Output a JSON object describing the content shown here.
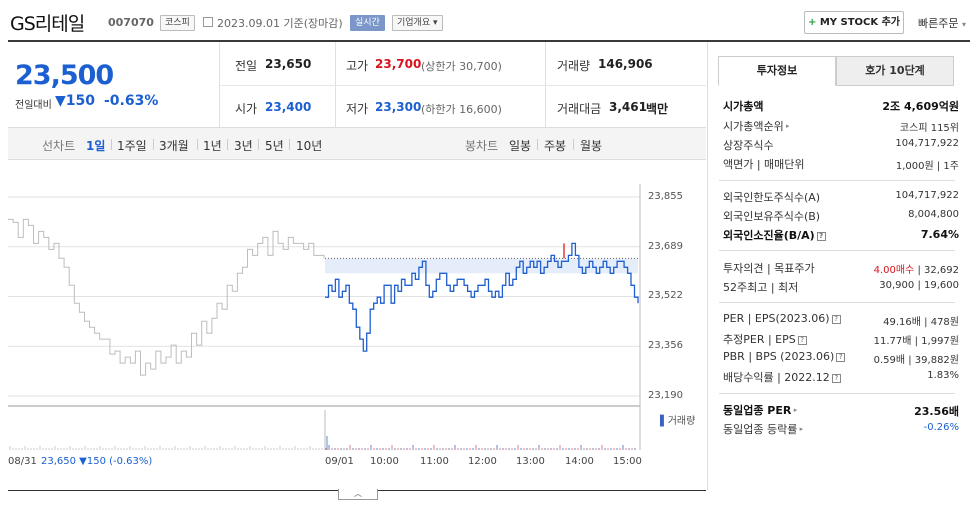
{
  "header": {
    "stock_name": "GS리테일",
    "stock_code": "007070",
    "market_badge": "코스피",
    "date_text": "2023.09.01 기준(장마감)",
    "realtime_badge": "실시간",
    "company_info_badge": "기업개요",
    "my_stock_label": "MY STOCK 추가",
    "quick_order_label": "빠른주문"
  },
  "summary": {
    "price": "23,500",
    "change_label": "전일대비",
    "change_amount": "▼150",
    "change_percent": "-0.63%",
    "prev_close_label": "전일",
    "prev_close": "23,650",
    "high_label": "고가",
    "high": "23,700",
    "upper_limit": "(상한가 30,700)",
    "volume_label": "거래량",
    "volume": "146,906",
    "open_label": "시가",
    "open": "23,400",
    "low_label": "저가",
    "low": "23,300",
    "lower_limit": "(하한가 16,600)",
    "amount_label": "거래대금",
    "amount": "3,461",
    "amount_unit": "백만"
  },
  "period_tabs": {
    "line_label": "선차트",
    "line_items": [
      "1일",
      "1주일",
      "3개월",
      "1년",
      "3년",
      "5년",
      "10년"
    ],
    "candle_label": "봉차트",
    "candle_items": [
      "일봉",
      "주봉",
      "월봉"
    ]
  },
  "chart": {
    "y_ticks": [
      "23,855",
      "23,689",
      "23,522",
      "23,356",
      "23,190"
    ],
    "x_ticks": [
      "09/01",
      "10:00",
      "11:00",
      "12:00",
      "13:00",
      "14:00",
      "15:00"
    ],
    "prev_date": "08/31",
    "prev_info": "23,650 ▼150 (-0.63%)",
    "volume_legend": "거래량",
    "up_color": "#e53935",
    "down_color": "#1f5fd1",
    "prev_color": "#bdbdbd"
  },
  "chart_data": {
    "type": "line",
    "ylim": [
      23190,
      23855
    ],
    "baseline": 23650,
    "prev_day_series": [
      23780,
      23770,
      23720,
      23780,
      23760,
      23700,
      23740,
      23720,
      23680,
      23700,
      23650,
      23620,
      23560,
      23500,
      23470,
      23440,
      23420,
      23400,
      23380,
      23380,
      23330,
      23340,
      23300,
      23320,
      23300,
      23340,
      23260,
      23300,
      23280,
      23340,
      23300,
      23320,
      23360,
      23300,
      23340,
      23320,
      23400,
      23360,
      23440,
      23400,
      23450,
      23500,
      23480,
      23560,
      23540,
      23600,
      23620,
      23680,
      23660,
      23700,
      23720,
      23660,
      23740,
      23700,
      23680,
      23720,
      23700,
      23700,
      23680,
      23700,
      23660,
      23660,
      23650
    ],
    "today_series": [
      23520,
      23560,
      23540,
      23580,
      23520,
      23540,
      23560,
      23500,
      23480,
      23420,
      23380,
      23340,
      23400,
      23480,
      23500,
      23520,
      23500,
      23560,
      23560,
      23500,
      23560,
      23540,
      23580,
      23560,
      23560,
      23600,
      23580,
      23620,
      23640,
      23560,
      23520,
      23540,
      23580,
      23600,
      23600,
      23560,
      23540,
      23560,
      23580,
      23580,
      23560,
      23540,
      23520,
      23540,
      23560,
      23560,
      23580,
      23540,
      23520,
      23540,
      23520,
      23560,
      23600,
      23560,
      23580,
      23620,
      23640,
      23600,
      23620,
      23640,
      23620,
      23640,
      23600,
      23620,
      23640,
      23660,
      23640,
      23620,
      23640,
      23640,
      23660,
      23700,
      23660,
      23620,
      23600,
      23620,
      23640,
      23620,
      23600,
      23620,
      23640,
      23620,
      23600,
      23620,
      23640,
      23640,
      23620,
      23600,
      23560,
      23520,
      23500
    ]
  },
  "panel": {
    "tab_active": "투자정보",
    "tab_other": "호가 10단계",
    "market_cap_label": "시가총액",
    "market_cap": "2조 4,609억원",
    "market_cap_rank_label": "시가총액순위",
    "market_cap_rank": "코스피 115위",
    "shares_label": "상장주식수",
    "shares": "104,717,922",
    "par_label": "액면가 | 매매단위",
    "par": "1,000원 | 1주",
    "foreign_limit_label": "외국인한도주식수(A)",
    "foreign_limit": "104,717,922",
    "foreign_hold_label": "외국인보유주식수(B)",
    "foreign_hold": "8,004,800",
    "foreign_ratio_label": "외국인소진율(B/A)",
    "foreign_ratio": "7.64%",
    "opinion_label": "투자의견 | 목표주가",
    "opinion": "4.00매수",
    "target": "32,692",
    "w52_label": "52주최고 | 최저",
    "w52": "30,900 | 19,600",
    "per_label": "PER | EPS(2023.06)",
    "per": "49.16배 | 478원",
    "est_per_label": "추정PER | EPS",
    "est_per": "11.77배 | 1,997원",
    "pbr_label": "PBR | BPS (2023.06)",
    "pbr": "0.59배 | 39,882원",
    "div_label": "배당수익률 | 2022.12",
    "div": "1.83%",
    "ind_per_label": "동일업종 PER",
    "ind_per": "23.56배",
    "ind_rate_label": "동일업종 등락률",
    "ind_rate": "-0.26%"
  }
}
